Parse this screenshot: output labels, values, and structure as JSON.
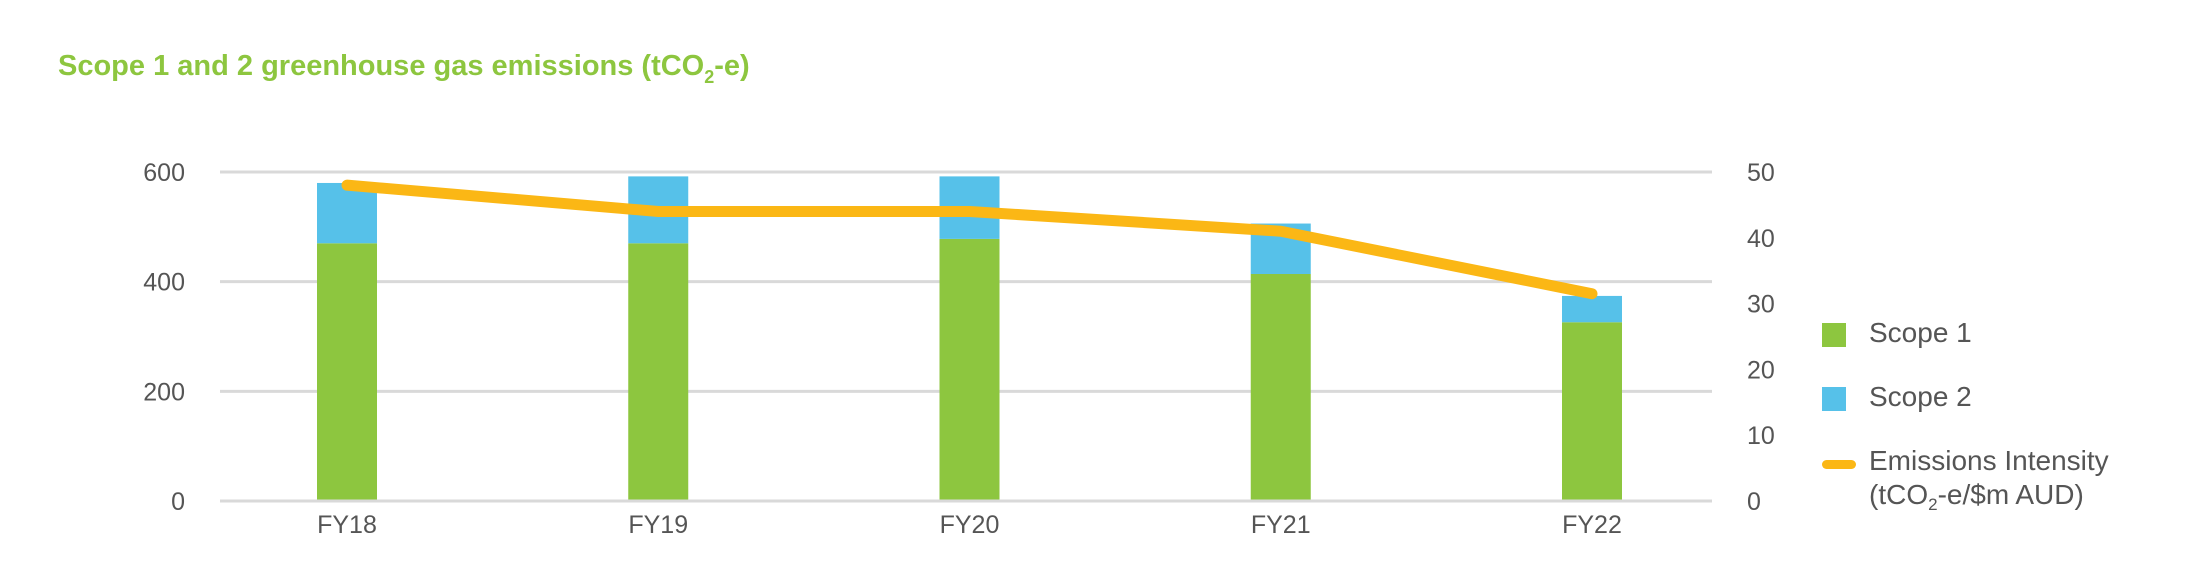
{
  "title": {
    "main": "Scope 1 and 2 greenhouse gas emissions (tCO",
    "sub": "2",
    "suffix": "-e)"
  },
  "colors": {
    "title": "#8dc63f",
    "scope1": "#8dc63f",
    "scope2": "#56c1e9",
    "intensity": "#fbb715",
    "grid": "#d9d9d9",
    "text": "#555555"
  },
  "legend": {
    "scope1": "Scope 1",
    "scope2": "Scope 2",
    "intensity_line1": "Emissions Intensity",
    "intensity_line2_pre": "(tCO",
    "intensity_line2_sub": "2",
    "intensity_line2_post": "-e/$m AUD)"
  },
  "chart_data": {
    "type": "bar",
    "stacked": true,
    "categories": [
      "FY18",
      "FY19",
      "FY20",
      "FY21",
      "FY22"
    ],
    "series": [
      {
        "name": "Scope 1",
        "type": "bar",
        "axis": "left",
        "values": [
          470,
          470,
          478,
          414,
          326
        ]
      },
      {
        "name": "Scope 2",
        "type": "bar",
        "axis": "left",
        "values": [
          110,
          122,
          114,
          92,
          48
        ]
      },
      {
        "name": "Emissions Intensity (tCO2-e/$m AUD)",
        "type": "line",
        "axis": "right",
        "values": [
          48,
          44,
          44,
          41,
          31.5
        ]
      }
    ],
    "y_left": {
      "ylim": [
        0,
        600
      ],
      "ticks": [
        0,
        200,
        400,
        600
      ]
    },
    "y_right": {
      "ylim": [
        0,
        50
      ],
      "ticks": [
        0,
        10,
        20,
        30,
        40,
        50
      ]
    },
    "grid": true,
    "legend_position": "right"
  }
}
